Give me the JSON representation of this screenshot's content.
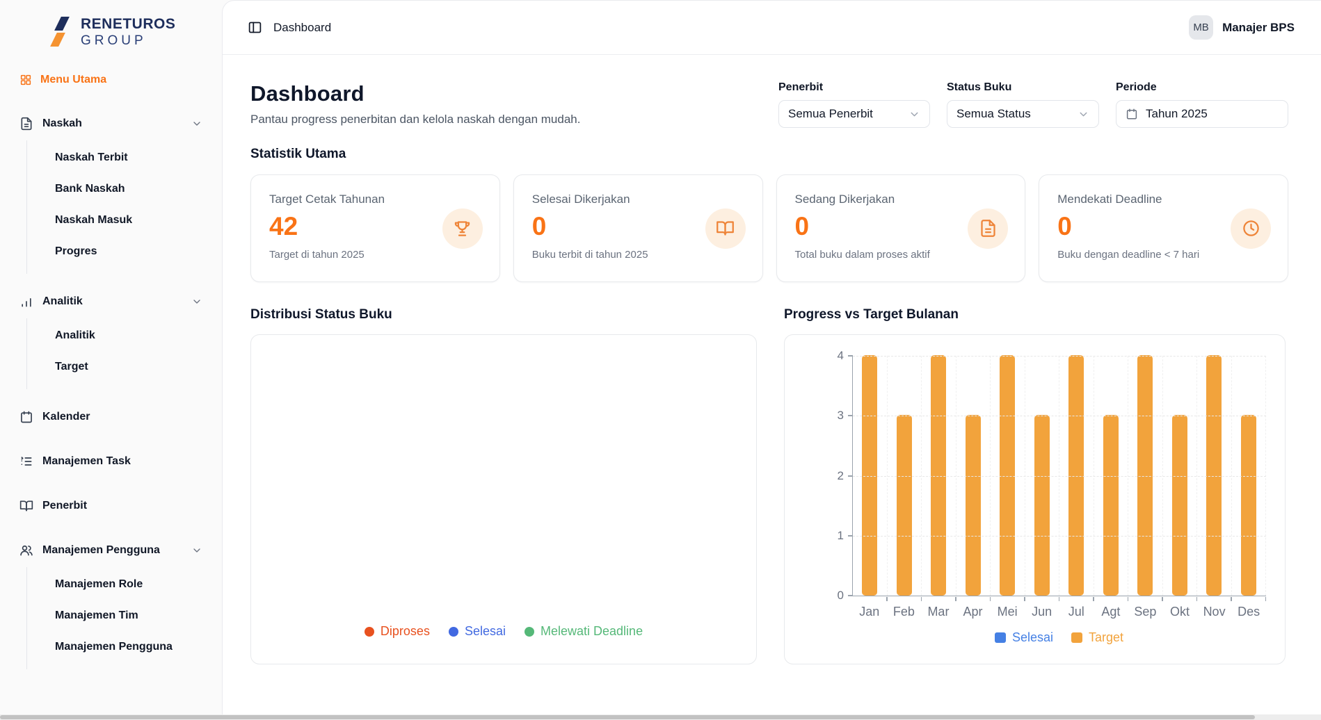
{
  "brand": {
    "line1": "RENETUROS",
    "line2": "GROUP"
  },
  "colors": {
    "accent_orange": "#f97316",
    "navy": "#1e2e5c",
    "bar_target": "#f2a33c",
    "legend_selesai_blue": "#4580e4",
    "pie_diproses": "#e8511f",
    "pie_selesai": "#4169e1",
    "pie_melewati_deadline": "#55b878"
  },
  "sidebar": {
    "section_label": "Menu Utama",
    "section_icon": "grid-icon",
    "items": [
      {
        "label": "Naskah",
        "icon": "file-text-icon",
        "expandable": true,
        "children": [
          "Naskah Terbit",
          "Bank Naskah",
          "Naskah Masuk",
          "Progres"
        ]
      },
      {
        "label": "Analitik",
        "icon": "bar-chart-icon",
        "expandable": true,
        "children": [
          "Analitik",
          "Target"
        ]
      },
      {
        "label": "Kalender",
        "icon": "calendar-icon",
        "expandable": false,
        "children": []
      },
      {
        "label": "Manajemen Task",
        "icon": "list-icon",
        "expandable": false,
        "children": []
      },
      {
        "label": "Penerbit",
        "icon": "book-open-icon",
        "expandable": false,
        "children": []
      },
      {
        "label": "Manajemen Pengguna",
        "icon": "users-icon",
        "expandable": true,
        "children": [
          "Manajemen Role",
          "Manajemen Tim",
          "Manajemen Pengguna"
        ]
      }
    ]
  },
  "header": {
    "toggle_icon": "panel-left-icon",
    "breadcrumb": "Dashboard",
    "user_initials": "MB",
    "user_name": "Manajer BPS"
  },
  "page": {
    "title": "Dashboard",
    "subtitle": "Pantau progress penerbitan dan kelola naskah dengan mudah.",
    "stats_heading": "Statistik Utama"
  },
  "filters": {
    "penerbit": {
      "label": "Penerbit",
      "value": "Semua Penerbit"
    },
    "status": {
      "label": "Status Buku",
      "value": "Semua Status"
    },
    "periode": {
      "label": "Periode",
      "value": "Tahun 2025",
      "icon": "calendar-icon"
    }
  },
  "stats": [
    {
      "label": "Target Cetak Tahunan",
      "value": "42",
      "caption": "Target di tahun 2025",
      "icon": "trophy-icon"
    },
    {
      "label": "Selesai Dikerjakan",
      "value": "0",
      "caption": "Buku terbit di tahun 2025",
      "icon": "book-open-icon"
    },
    {
      "label": "Sedang Dikerjakan",
      "value": "0",
      "caption": "Total buku dalam proses aktif",
      "icon": "file-text-icon"
    },
    {
      "label": "Mendekati Deadline",
      "value": "0",
      "caption": "Buku dengan deadline < 7 hari",
      "icon": "clock-icon"
    }
  ],
  "chart_data": [
    {
      "type": "pie",
      "title": "Distribusi Status Buku",
      "slices_visible": false,
      "legend_position": "bottom",
      "legend": [
        {
          "label": "Diproses",
          "color": "#e8511f"
        },
        {
          "label": "Selesai",
          "color": "#4169e1"
        },
        {
          "label": "Melewati Deadline",
          "color": "#55b878"
        }
      ]
    },
    {
      "type": "bar",
      "title": "Progress vs Target Bulanan",
      "categories": [
        "Jan",
        "Feb",
        "Mar",
        "Apr",
        "Mei",
        "Jun",
        "Jul",
        "Agt",
        "Sep",
        "Okt",
        "Nov",
        "Des"
      ],
      "series": [
        {
          "name": "Selesai",
          "color": "#4580e4",
          "values": [
            0,
            0,
            0,
            0,
            0,
            0,
            0,
            0,
            0,
            0,
            0,
            0
          ]
        },
        {
          "name": "Target",
          "color": "#f2a33c",
          "values": [
            4,
            3,
            4,
            3,
            4,
            3,
            4,
            3,
            4,
            3,
            4,
            3
          ]
        }
      ],
      "ylim": [
        0,
        4
      ],
      "yticks": [
        0,
        1,
        2,
        3,
        4
      ],
      "grid": true,
      "legend_position": "bottom"
    }
  ]
}
